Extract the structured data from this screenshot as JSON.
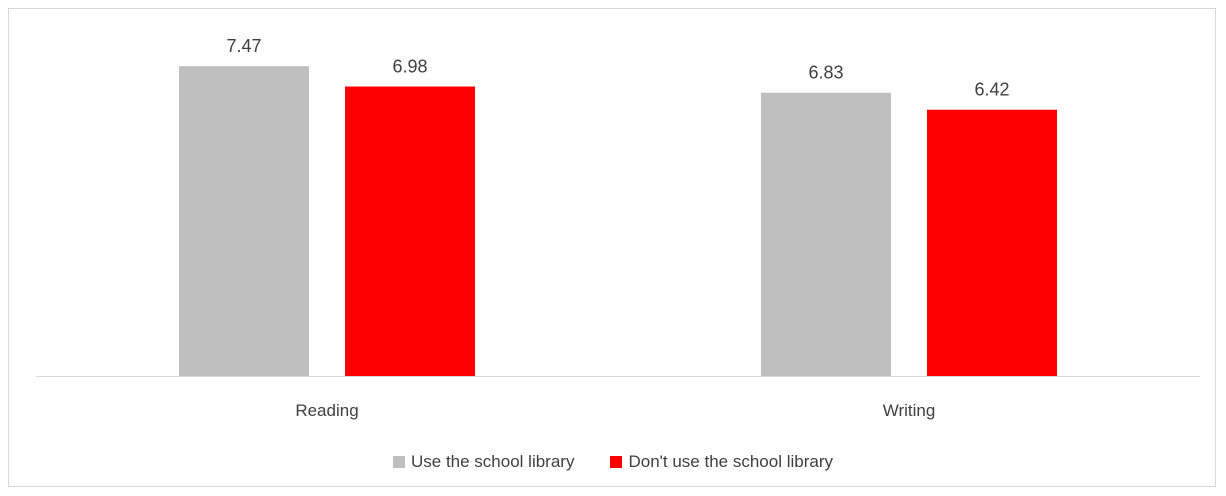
{
  "chart_data": {
    "type": "bar",
    "title": "",
    "categories": [
      "Reading",
      "Writing"
    ],
    "series": [
      {
        "name": "Use the school library",
        "values": [
          7.47,
          6.83
        ],
        "color": "#bfbfbf"
      },
      {
        "name": "Don't use the school library",
        "values": [
          6.98,
          6.42
        ],
        "color": "#ff0000"
      }
    ],
    "ylim": [
      0,
      9.5
    ],
    "grid": false,
    "data_labels": true,
    "legend_position": "bottom"
  }
}
